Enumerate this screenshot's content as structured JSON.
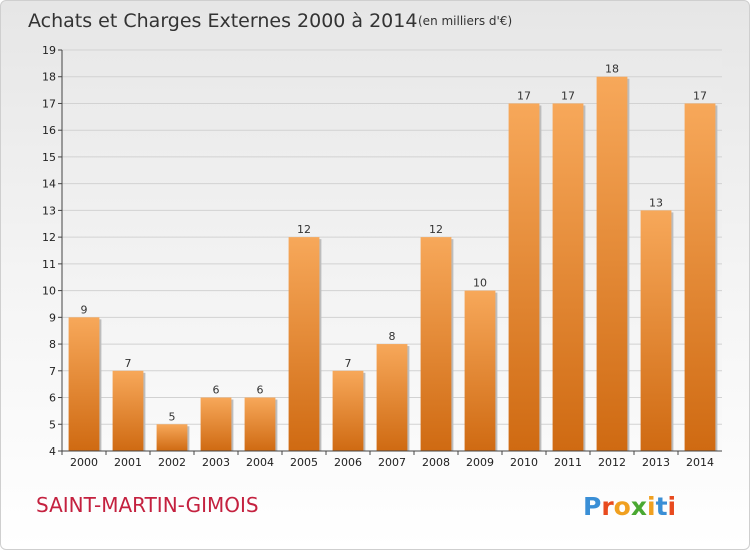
{
  "title": "Achats et Charges Externes 2000 à 2014",
  "subtitle": "(en milliers d'€)",
  "commune": "SAINT-MARTIN-GIMOIS",
  "brand": {
    "letters": [
      "P",
      "r",
      "o",
      "x",
      "i",
      "t",
      "i"
    ],
    "colors": [
      "#3a8fd6",
      "#e84a1e",
      "#f0a020",
      "#4aa832",
      "#f0a020",
      "#3a8fd6",
      "#e84a1e"
    ]
  },
  "colors": {
    "bar": "#f0922e",
    "bar_light": "#f7a85a",
    "bar_dark": "#d4701a",
    "commune": "#c4213f"
  },
  "chart_data": {
    "type": "bar",
    "title": "Achats et Charges Externes 2000 à 2014",
    "subtitle": "(en milliers d'€)",
    "categories": [
      "2000",
      "2001",
      "2002",
      "2003",
      "2004",
      "2005",
      "2006",
      "2007",
      "2008",
      "2009",
      "2010",
      "2011",
      "2012",
      "2013",
      "2014"
    ],
    "values": [
      9,
      7,
      5,
      6,
      6,
      12,
      7,
      8,
      12,
      10,
      17,
      17,
      18,
      13,
      17
    ],
    "ylim": [
      4,
      19
    ],
    "yticks": [
      4,
      5,
      6,
      7,
      8,
      9,
      10,
      11,
      12,
      13,
      14,
      15,
      16,
      17,
      18,
      19
    ],
    "grid": true
  }
}
